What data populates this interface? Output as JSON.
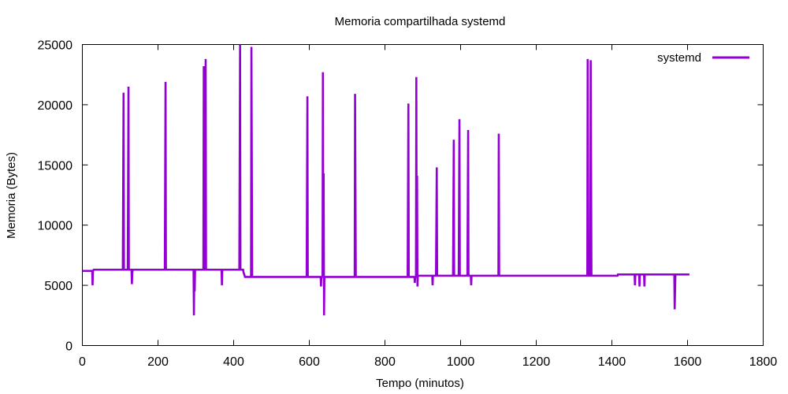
{
  "chart_data": {
    "type": "line",
    "title": "Memoria compartilhada systemd",
    "xlabel": "Tempo (minutos)",
    "ylabel": "Memoria (Bytes)",
    "xlim": [
      0,
      1800
    ],
    "ylim": [
      0,
      25000
    ],
    "xticks": [
      0,
      200,
      400,
      600,
      800,
      1000,
      1200,
      1400,
      1600,
      1800
    ],
    "yticks": [
      0,
      5000,
      10000,
      15000,
      20000,
      25000
    ],
    "grid": false,
    "legend_position": "top-right",
    "series": [
      {
        "name": "systemd",
        "color": "#9400D3",
        "points": [
          [
            0,
            6200
          ],
          [
            26,
            6200
          ],
          [
            27,
            5000
          ],
          [
            28,
            6200
          ],
          [
            30,
            6300
          ],
          [
            107,
            6300
          ],
          [
            108,
            13700
          ],
          [
            109,
            21000
          ],
          [
            110,
            6300
          ],
          [
            120,
            6300
          ],
          [
            121,
            13900
          ],
          [
            122,
            21500
          ],
          [
            123,
            6300
          ],
          [
            130,
            6300
          ],
          [
            131,
            5100
          ],
          [
            132,
            6000
          ],
          [
            133,
            6300
          ],
          [
            218,
            6300
          ],
          [
            219,
            14100
          ],
          [
            220,
            21900
          ],
          [
            221,
            6300
          ],
          [
            294,
            6300
          ],
          [
            295,
            2500
          ],
          [
            296,
            6100
          ],
          [
            297,
            4500
          ],
          [
            298,
            6300
          ],
          [
            320,
            6300
          ],
          [
            321,
            23200
          ],
          [
            323,
            6300
          ],
          [
            325,
            6300
          ],
          [
            326,
            23800
          ],
          [
            327,
            6300
          ],
          [
            368,
            6300
          ],
          [
            369,
            5000
          ],
          [
            370,
            6300
          ],
          [
            415,
            6300
          ],
          [
            416,
            15700
          ],
          [
            417,
            25000
          ],
          [
            418,
            6300
          ],
          [
            425,
            6300
          ],
          [
            426,
            6100
          ],
          [
            430,
            5700
          ],
          [
            446,
            5700
          ],
          [
            447,
            24800
          ],
          [
            448,
            15300
          ],
          [
            449,
            5700
          ],
          [
            593,
            5700
          ],
          [
            594,
            13200
          ],
          [
            595,
            20700
          ],
          [
            596,
            5700
          ],
          [
            630,
            5700
          ],
          [
            631,
            4900
          ],
          [
            632,
            5700
          ],
          [
            635,
            5700
          ],
          [
            636,
            22700
          ],
          [
            637,
            5700
          ],
          [
            638,
            14300
          ],
          [
            639,
            2500
          ],
          [
            640,
            5700
          ],
          [
            720,
            5700
          ],
          [
            721,
            20900
          ],
          [
            722,
            13300
          ],
          [
            723,
            5700
          ],
          [
            860,
            5700
          ],
          [
            861,
            12900
          ],
          [
            862,
            20100
          ],
          [
            863,
            5700
          ],
          [
            878,
            5700
          ],
          [
            879,
            5200
          ],
          [
            880,
            5700
          ],
          [
            882,
            5700
          ],
          [
            883,
            22300
          ],
          [
            884,
            5700
          ],
          [
            885,
            14100
          ],
          [
            886,
            4900
          ],
          [
            887,
            5800
          ],
          [
            925,
            5800
          ],
          [
            926,
            5000
          ],
          [
            927,
            5800
          ],
          [
            935,
            5800
          ],
          [
            936,
            10300
          ],
          [
            937,
            14800
          ],
          [
            938,
            5800
          ],
          [
            980,
            5800
          ],
          [
            981,
            11500
          ],
          [
            982,
            17100
          ],
          [
            983,
            5800
          ],
          [
            995,
            5800
          ],
          [
            996,
            12300
          ],
          [
            997,
            18800
          ],
          [
            998,
            5800
          ],
          [
            1018,
            5800
          ],
          [
            1019,
            11800
          ],
          [
            1020,
            17900
          ],
          [
            1021,
            5800
          ],
          [
            1027,
            5800
          ],
          [
            1028,
            5000
          ],
          [
            1029,
            5800
          ],
          [
            1100,
            5800
          ],
          [
            1101,
            17600
          ],
          [
            1102,
            5800
          ],
          [
            1335,
            5800
          ],
          [
            1336,
            23800
          ],
          [
            1337,
            14700
          ],
          [
            1338,
            5800
          ],
          [
            1343,
            5800
          ],
          [
            1344,
            23700
          ],
          [
            1345,
            14800
          ],
          [
            1346,
            5800
          ],
          [
            1415,
            5800
          ],
          [
            1416,
            5900
          ],
          [
            1460,
            5900
          ],
          [
            1461,
            5000
          ],
          [
            1462,
            5900
          ],
          [
            1472,
            5900
          ],
          [
            1473,
            4900
          ],
          [
            1474,
            5900
          ],
          [
            1485,
            5900
          ],
          [
            1486,
            4900
          ],
          [
            1487,
            5900
          ],
          [
            1565,
            5900
          ],
          [
            1566,
            3000
          ],
          [
            1567,
            4500
          ],
          [
            1568,
            5900
          ],
          [
            1605,
            5900
          ]
        ]
      }
    ]
  }
}
